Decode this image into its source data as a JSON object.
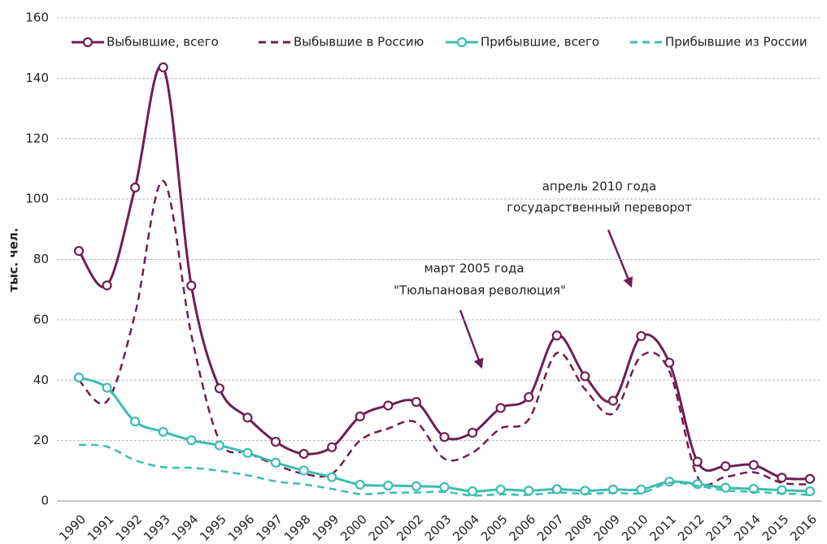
{
  "chart_data": {
    "type": "line",
    "y_label": "тыс. чел.",
    "categories": [
      "1990",
      "1991",
      "1992",
      "1993",
      "1994",
      "1995",
      "1996",
      "1997",
      "1998",
      "1999",
      "2000",
      "2001",
      "2002",
      "2003",
      "2004",
      "2005",
      "2006",
      "2007",
      "2008",
      "2009",
      "2010",
      "2011",
      "2012",
      "2013",
      "2014",
      "2015",
      "2016"
    ],
    "series": [
      {
        "name": "Выбывшие, всего",
        "color": "#6e1f4f",
        "dashed": false,
        "markers": true,
        "values": [
          82.8,
          71.4,
          103.8,
          143.6,
          71.3,
          37.3,
          27.6,
          19.6,
          15.6,
          17.8,
          28.0,
          31.6,
          32.8,
          21.2,
          22.6,
          30.8,
          34.4,
          54.8,
          41.3,
          33.2,
          54.6,
          45.8,
          13.0,
          11.5,
          11.9,
          7.7,
          7.3
        ]
      },
      {
        "name": "Выбывшие в Россию",
        "color": "#6e1f4f",
        "dashed": true,
        "markers": false,
        "values": [
          40,
          33,
          62,
          106,
          55,
          20,
          16,
          12,
          9,
          9,
          20,
          24,
          26,
          14,
          16,
          24,
          27,
          49,
          37,
          29,
          48,
          43,
          8,
          8,
          9.5,
          6,
          5.5
        ]
      },
      {
        "name": "Прибывшие, всего",
        "color": "#3cbdb0",
        "dashed": false,
        "markers": true,
        "values": [
          40.9,
          37.5,
          26.3,
          22.9,
          20.1,
          18.4,
          15.9,
          12.7,
          10.1,
          7.9,
          5.4,
          5.1,
          4.9,
          4.6,
          3.2,
          3.8,
          3.4,
          3.9,
          3.4,
          3.8,
          3.8,
          6.4,
          5.6,
          4.4,
          4.0,
          3.6,
          3.2
        ]
      },
      {
        "name": "Прибывшие из России",
        "color": "#3cbdb0",
        "dashed": true,
        "markers": false,
        "values": [
          18.6,
          18,
          13.5,
          11.2,
          11,
          10,
          8.5,
          6.5,
          5.5,
          4,
          2.3,
          2.7,
          2.8,
          3,
          1.8,
          2.2,
          2,
          2.8,
          2.4,
          2.7,
          2.6,
          6,
          5,
          3.5,
          3,
          2.5,
          2
        ]
      }
    ],
    "annotations": [
      {
        "lines": [
          "апрель 2010 года",
          "государственный переворот"
        ]
      },
      {
        "lines": [
          "март 2005 года",
          "\"Тюльпановая революция\""
        ]
      }
    ],
    "ylim": [
      0,
      160
    ],
    "yticks": [
      0,
      20,
      40,
      60,
      80,
      100,
      120,
      140,
      160
    ],
    "grid": true,
    "legend": "top"
  }
}
